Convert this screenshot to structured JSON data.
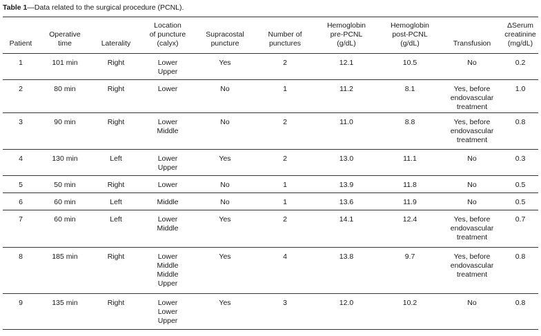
{
  "caption": {
    "label": "Table 1",
    "text": "—Data related to the surgical procedure (PCNL)."
  },
  "headers": [
    [
      "Patient"
    ],
    [
      "Operative",
      "time"
    ],
    [
      "Laterality"
    ],
    [
      "Location",
      "of puncture",
      "(calyx)"
    ],
    [
      "Supracostal",
      "puncture"
    ],
    [
      "Number of",
      "punctures"
    ],
    [
      "Hemoglobin",
      "pre-PCNL",
      "(g/dL)"
    ],
    [
      "Hemoglobin",
      "post-PCNL",
      "(g/dL)"
    ],
    [
      "Transfusion"
    ],
    [
      "ΔSerum",
      "creatinine",
      "(mg/dL)"
    ]
  ],
  "rows": [
    {
      "patient": "1",
      "time": "101 min",
      "laterality": "Right",
      "location": [
        "Lower",
        "Upper"
      ],
      "supracostal": "Yes",
      "punctures": "2",
      "hb_pre": "12.1",
      "hb_post": "10.5",
      "transfusion": [
        "No"
      ],
      "creatinine": "0.2"
    },
    {
      "patient": "2",
      "time": "80 min",
      "laterality": "Right",
      "location": [
        "Lower"
      ],
      "supracostal": "No",
      "punctures": "1",
      "hb_pre": "11.2",
      "hb_post": "8.1",
      "transfusion": [
        "Yes, before",
        "endovascular",
        "treatment"
      ],
      "creatinine": "1.0"
    },
    {
      "patient": "3",
      "time": "90 min",
      "laterality": "Right",
      "location": [
        "Lower",
        "Middle"
      ],
      "supracostal": "No",
      "punctures": "2",
      "hb_pre": "11.0",
      "hb_post": "8.8",
      "transfusion": [
        "Yes, before",
        "endovascular",
        "treatment"
      ],
      "creatinine": "0.8"
    },
    {
      "patient": "4",
      "time": "130 min",
      "laterality": "Left",
      "location": [
        "Lower",
        "Upper"
      ],
      "supracostal": "Yes",
      "punctures": "2",
      "hb_pre": "13.0",
      "hb_post": "11.1",
      "transfusion": [
        "No"
      ],
      "creatinine": "0.3"
    },
    {
      "patient": "5",
      "time": "50 min",
      "laterality": "Right",
      "location": [
        "Lower"
      ],
      "supracostal": "No",
      "punctures": "1",
      "hb_pre": "13.9",
      "hb_post": "11.8",
      "transfusion": [
        "No"
      ],
      "creatinine": "0.5"
    },
    {
      "patient": "6",
      "time": "60 min",
      "laterality": "Left",
      "location": [
        "Middle"
      ],
      "supracostal": "No",
      "punctures": "1",
      "hb_pre": "13.6",
      "hb_post": "11.9",
      "transfusion": [
        "No"
      ],
      "creatinine": "0.5"
    },
    {
      "patient": "7",
      "time": "60 min",
      "laterality": "Left",
      "location": [
        "Lower",
        "Middle"
      ],
      "supracostal": "Yes",
      "punctures": "2",
      "hb_pre": "14.1",
      "hb_post": "12.4",
      "transfusion": [
        "Yes, before",
        "endovascular",
        "treatment"
      ],
      "creatinine": "0.7"
    },
    {
      "patient": "8",
      "time": "185 min",
      "laterality": "Right",
      "location": [
        "Lower",
        "Middle",
        "Middle",
        "Upper"
      ],
      "supracostal": "Yes",
      "punctures": "4",
      "hb_pre": "13.8",
      "hb_post": "9.7",
      "transfusion": [
        "Yes, before",
        "endovascular",
        "treatment"
      ],
      "creatinine": "0.8"
    },
    {
      "patient": "9",
      "time": "135 min",
      "laterality": "Right",
      "location": [
        "Lower",
        "Lower",
        "Upper"
      ],
      "supracostal": "Yes",
      "punctures": "3",
      "hb_pre": "12.0",
      "hb_post": "10.2",
      "transfusion": [
        "No"
      ],
      "creatinine": "0.8"
    }
  ]
}
